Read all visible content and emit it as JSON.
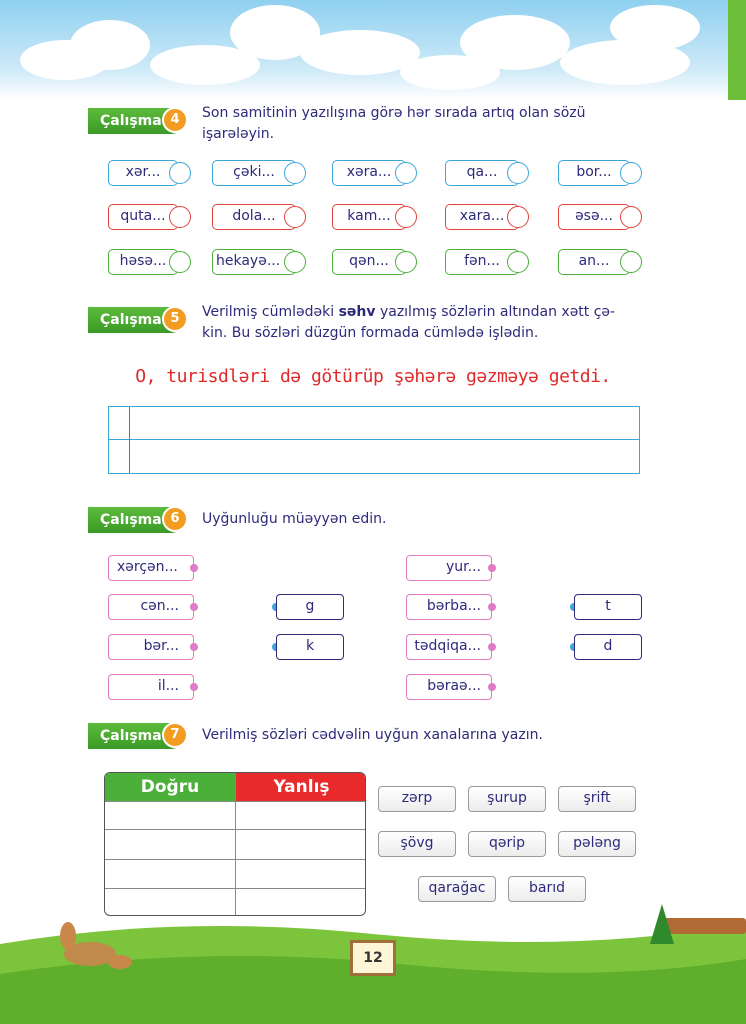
{
  "exercises": {
    "e4": {
      "label": "Çalışma",
      "number": "4",
      "instruction_l1": "Son samitinin yazılışına görə hər sırada artıq olan sözü",
      "instruction_l2": "işarələyin.",
      "rows": [
        [
          "xər...",
          "çəki...",
          "xəra...",
          "qa...",
          "bor..."
        ],
        [
          "quta...",
          "dola...",
          "kam...",
          "xara...",
          "əsə..."
        ],
        [
          "həsə...",
          "hekayə...",
          "qən...",
          "fən...",
          "an..."
        ]
      ]
    },
    "e5": {
      "label": "Çalışma",
      "number": "5",
      "instruction_l1_pre": "Verilmiş cümlədəki ",
      "instruction_l1_bold": "səhv",
      "instruction_l1_post": " yazılmış sözlərin altından xətt çə-",
      "instruction_l2": "kin. Bu sözləri düzgün formada cümlədə işlədin.",
      "sentence": "O, turisdləri də götürüp şəhərə gəzməyə getdi."
    },
    "e6": {
      "label": "Çalışma",
      "number": "6",
      "instruction": "Uyğunluğu müəyyən edin.",
      "left_words": [
        "xərçən...",
        "cən...",
        "bər...",
        "il..."
      ],
      "mid_letters": [
        "g",
        "k"
      ],
      "right_words": [
        "yur...",
        "bərba...",
        "tədqiqa...",
        "bəraə..."
      ],
      "end_letters": [
        "t",
        "d"
      ]
    },
    "e7": {
      "label": "Çalışma",
      "number": "7",
      "instruction": "Verilmiş sözləri cədvəlin uyğun xanalarına yazın.",
      "col_correct": "Doğru",
      "col_wrong": "Yanlış",
      "words": [
        "zərp",
        "şurup",
        "şrift",
        "şövg",
        "qərip",
        "pələng",
        "qarağac",
        "barıd"
      ]
    }
  },
  "page_number": "12",
  "colors": {
    "green": "#4ab03a",
    "red": "#e0443c",
    "blue": "#3ba7d8",
    "pink": "#e07bc5",
    "orange": "#f39c22"
  }
}
